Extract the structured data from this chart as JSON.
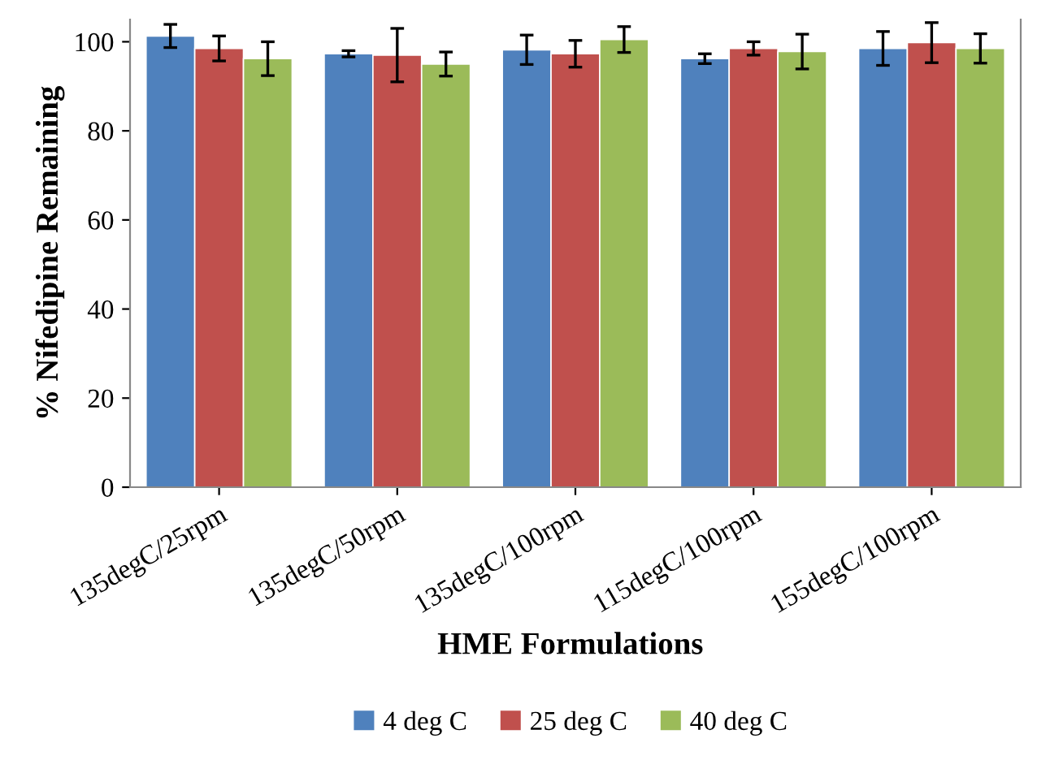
{
  "chart_data": {
    "type": "bar",
    "xlabel": "HME Formulations",
    "ylabel": "% Nifedipine Remaining",
    "categories": [
      "135degC/25rpm",
      "135degC/50rpm",
      "135degC/100rpm",
      "115degC/100rpm",
      "155degC/100rpm"
    ],
    "series": [
      {
        "name": "4 deg C",
        "color": "#4f81bd",
        "values": [
          101.3,
          97.3,
          98.2,
          96.2,
          98.5
        ],
        "errors": [
          2.6,
          0.7,
          3.3,
          1.1,
          3.8
        ]
      },
      {
        "name": "25 deg C",
        "color": "#c0504d",
        "values": [
          98.5,
          97.0,
          97.3,
          98.5,
          99.8
        ],
        "errors": [
          2.8,
          6.0,
          3.0,
          1.5,
          4.5
        ]
      },
      {
        "name": "40 deg C",
        "color": "#9bbb59",
        "values": [
          96.2,
          95.0,
          100.5,
          97.8,
          98.5
        ],
        "errors": [
          3.8,
          2.7,
          2.9,
          3.9,
          3.3
        ]
      }
    ],
    "ylim": [
      0,
      105
    ],
    "yticks": [
      0,
      20,
      40,
      60,
      80,
      100
    ],
    "grid": false,
    "legend": "bottom"
  }
}
